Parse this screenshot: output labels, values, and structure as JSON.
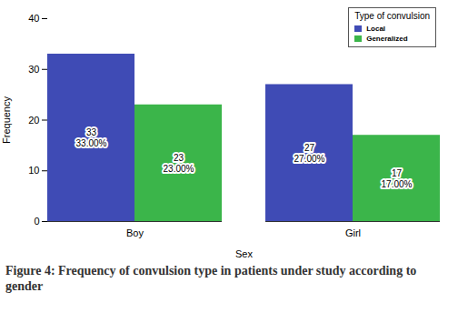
{
  "chart_data": {
    "type": "bar",
    "title": "Figure 4: Frequency of convulsion type in patients under study according to gender",
    "x_label": "Sex",
    "y_label": "Frequency",
    "legend_title": "Type of convulsion",
    "legend": "top-right",
    "categories": [
      "Boy",
      "Girl"
    ],
    "series": [
      {
        "name": "Local",
        "color": "#3f4bb5",
        "values": [
          33,
          27
        ],
        "value_labels": [
          "33\n33.00%",
          "27\n27.00%"
        ]
      },
      {
        "name": "Generalized",
        "color": "#3bb54a",
        "values": [
          23,
          17
        ],
        "value_labels": [
          "23\n23.00%",
          "17\n17.00%"
        ]
      }
    ],
    "ylim": [
      0,
      40
    ],
    "yticks": [
      0,
      10,
      20,
      30,
      40
    ],
    "grid": false,
    "data_labels": true
  }
}
